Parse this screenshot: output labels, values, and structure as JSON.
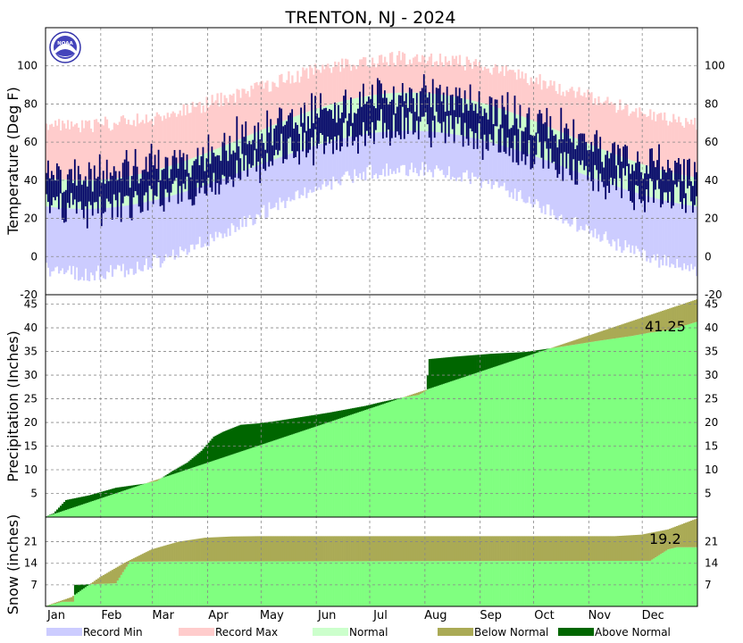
{
  "chart_data": {
    "type": "climate-summary",
    "title": "TRENTON, NJ - 2024",
    "months": [
      "Jan",
      "Feb",
      "Mar",
      "Apr",
      "May",
      "Jun",
      "Jul",
      "Aug",
      "Sep",
      "Oct",
      "Nov",
      "Dec"
    ],
    "colors": {
      "record_min": "#ccccff",
      "record_max": "#ffcccc",
      "normal": "#ccffcc",
      "observed": "#000066",
      "below_normal": "#aaaa55",
      "above_normal": "#006600",
      "normal_accum": "#80ff80"
    },
    "legend": [
      "Record Min",
      "Record Max",
      "Normal",
      "Below Normal",
      "Above Normal"
    ],
    "temperature": {
      "ylabel": "Temperature (Deg F)",
      "ylim": [
        -20,
        120
      ],
      "ticks": [
        0,
        20,
        40,
        60,
        80,
        100
      ],
      "bottom_tick": "-20",
      "normal_low_jan": 25,
      "normal_low_jul": 66,
      "normal_high_jan": 40,
      "normal_high_jul": 86,
      "record_low_jan": -5,
      "record_low_jul": 50,
      "record_high_jan": 68,
      "record_high_jul": 103
    },
    "precipitation": {
      "ylabel": "Precipitation (Inches)",
      "ylim": [
        0,
        47
      ],
      "ticks": [
        5,
        10,
        15,
        20,
        25,
        30,
        35,
        40,
        45
      ],
      "total_label": "41.25",
      "observed_cumulative": [
        [
          0,
          0
        ],
        [
          5,
          0.8
        ],
        [
          12,
          3.6
        ],
        [
          25,
          4.6
        ],
        [
          40,
          6.2
        ],
        [
          55,
          7.0
        ],
        [
          63,
          7.6
        ],
        [
          72,
          9.8
        ],
        [
          80,
          11.5
        ],
        [
          88,
          14.0
        ],
        [
          95,
          17.0
        ],
        [
          100,
          18.0
        ],
        [
          110,
          19.5
        ],
        [
          120,
          19.8
        ],
        [
          130,
          20.3
        ],
        [
          140,
          20.9
        ],
        [
          150,
          21.5
        ],
        [
          160,
          22.1
        ],
        [
          170,
          22.8
        ],
        [
          180,
          23.5
        ],
        [
          190,
          24.4
        ],
        [
          200,
          25.2
        ],
        [
          210,
          25.8
        ],
        [
          214,
          26.7
        ],
        [
          215,
          30.0
        ],
        [
          216,
          33.4
        ],
        [
          230,
          33.9
        ],
        [
          250,
          34.5
        ],
        [
          270,
          34.9
        ],
        [
          290,
          36.0
        ],
        [
          310,
          37.2
        ],
        [
          330,
          38.3
        ],
        [
          340,
          39.0
        ],
        [
          350,
          39.5
        ],
        [
          355,
          40.0
        ],
        [
          366,
          41.25
        ]
      ],
      "normal_annual_total": 46
    },
    "snow": {
      "ylabel": "Snow (inches)",
      "ylim": [
        0,
        29
      ],
      "ticks": [
        7,
        14,
        21
      ],
      "total_label": "19.2",
      "observed_cumulative": [
        [
          0,
          0
        ],
        [
          10,
          1.5
        ],
        [
          16,
          1.5
        ],
        [
          17,
          7.0
        ],
        [
          40,
          7.5
        ],
        [
          45,
          12.0
        ],
        [
          48,
          14.5
        ],
        [
          80,
          14.6
        ],
        [
          340,
          14.8
        ],
        [
          350,
          18.5
        ],
        [
          355,
          19.2
        ],
        [
          366,
          19.2
        ]
      ],
      "normal_cumulative": [
        [
          0,
          0
        ],
        [
          15,
          3
        ],
        [
          31,
          9.5
        ],
        [
          45,
          14.2
        ],
        [
          60,
          18.5
        ],
        [
          75,
          21.0
        ],
        [
          90,
          22.3
        ],
        [
          105,
          22.7
        ],
        [
          120,
          22.8
        ],
        [
          320,
          22.8
        ],
        [
          335,
          23.3
        ],
        [
          350,
          25.0
        ],
        [
          366,
          28.5
        ]
      ]
    }
  }
}
